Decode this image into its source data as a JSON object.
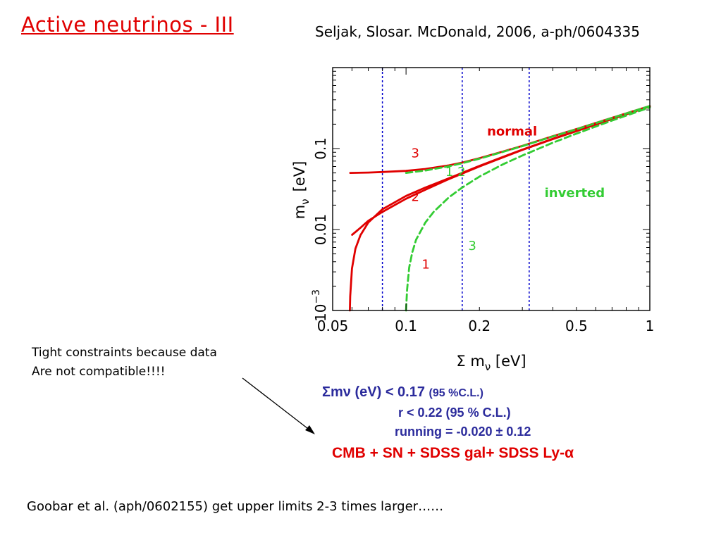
{
  "slide": {
    "title": "Active neutrinos -  III",
    "citation": "Seljak, Slosar. McDonald, 2006, a-ph/0604335",
    "note_lines": [
      "Tight constraints because data",
      "Are not compatible!!!!"
    ],
    "results": {
      "line1_sym": "Σmν",
      "line1_main": " (eV) < 0.17 ",
      "line1_small": "(95 %C.L.)",
      "line2": "r < 0.22 (95 % C.L.)",
      "line3": "running = -0.020 ± 0.12",
      "line4": "CMB + SN + SDSS gal+ SDSS Ly-α"
    },
    "footer": "Goobar et al. (aph/0602155) get upper  limits 2-3 times larger……"
  },
  "colors": {
    "title": "#e00000",
    "normal": "#e00000",
    "inverted": "#33cc33",
    "bounds": "#0000cc",
    "results": "#2b2b9c"
  },
  "chart_data": {
    "type": "line",
    "xscale": "log",
    "yscale": "log",
    "xlabel": "Σ m",
    "xlabel_sub": "ν",
    "xlabel_unit": " [eV]",
    "ylabel": "m",
    "ylabel_sub": "ν",
    "ylabel_unit": "[eV]",
    "xlim": [
      0.05,
      1
    ],
    "ylim": [
      0.001,
      1
    ],
    "x_ticks": [
      {
        "v": 0.05,
        "label": "0.05"
      },
      {
        "v": 0.1,
        "label": "0.1"
      },
      {
        "v": 0.2,
        "label": "0.2"
      },
      {
        "v": 0.5,
        "label": "0.5"
      },
      {
        "v": 1,
        "label": "1"
      }
    ],
    "y_ticks": [
      {
        "v": 0.001,
        "label": "10",
        "sup": "−3"
      },
      {
        "v": 0.01,
        "label": "0.01"
      },
      {
        "v": 0.1,
        "label": "0.1"
      }
    ],
    "vertical_lines": [
      0.08,
      0.17,
      0.32
    ],
    "grid": false,
    "series": [
      {
        "name": "normal",
        "group": "normal",
        "mass": "3",
        "style": "solid",
        "x": [
          0.059,
          0.07,
          0.08,
          0.1,
          0.12,
          0.15,
          0.17,
          0.2,
          0.25,
          0.3,
          0.4,
          0.5,
          0.7,
          1.0
        ],
        "y": [
          0.05,
          0.0505,
          0.0513,
          0.053,
          0.056,
          0.062,
          0.067,
          0.076,
          0.092,
          0.108,
          0.142,
          0.174,
          0.24,
          0.335
        ]
      },
      {
        "group": "normal",
        "mass": "2",
        "style": "solid",
        "x": [
          0.0601,
          0.065,
          0.07,
          0.08,
          0.1,
          0.12,
          0.15,
          0.17,
          0.2,
          0.25,
          0.3,
          0.4,
          0.5,
          0.7,
          1.0
        ],
        "y": [
          0.0086,
          0.0105,
          0.0128,
          0.0165,
          0.024,
          0.031,
          0.042,
          0.049,
          0.06,
          0.078,
          0.096,
          0.131,
          0.164,
          0.232,
          0.331
        ]
      },
      {
        "group": "normal",
        "mass": "1",
        "style": "solid",
        "x": [
          0.0588,
          0.059,
          0.06,
          0.062,
          0.065,
          0.07,
          0.08,
          0.1,
          0.12,
          0.15,
          0.17,
          0.2,
          0.25,
          0.3,
          0.4,
          0.5,
          0.7,
          1.0
        ],
        "y": [
          0.001,
          0.0015,
          0.0033,
          0.0058,
          0.0085,
          0.0122,
          0.0178,
          0.026,
          0.033,
          0.043,
          0.05,
          0.061,
          0.079,
          0.097,
          0.132,
          0.165,
          0.232,
          0.331
        ]
      },
      {
        "name": "inverted",
        "group": "inverted",
        "mass": "1 2",
        "style": "dashed",
        "x": [
          0.1,
          0.12,
          0.15,
          0.17,
          0.2,
          0.25,
          0.3,
          0.4,
          0.5,
          0.7,
          1.0
        ],
        "y": [
          0.05,
          0.0535,
          0.0605,
          0.066,
          0.075,
          0.091,
          0.107,
          0.141,
          0.173,
          0.239,
          0.335
        ]
      },
      {
        "group": "inverted",
        "mass": "3",
        "style": "dashed",
        "x": [
          0.1,
          0.101,
          0.103,
          0.106,
          0.11,
          0.12,
          0.13,
          0.15,
          0.17,
          0.2,
          0.25,
          0.3,
          0.4,
          0.5,
          0.7,
          1.0
        ],
        "y": [
          0.001,
          0.0018,
          0.0034,
          0.0052,
          0.0075,
          0.0122,
          0.0166,
          0.025,
          0.033,
          0.045,
          0.064,
          0.082,
          0.118,
          0.153,
          0.222,
          0.322
        ]
      }
    ],
    "annotations": [
      {
        "text": "normal",
        "x": 0.215,
        "y": 0.145,
        "color": "#e00000"
      },
      {
        "text": "3",
        "x": 0.105,
        "y": 0.078,
        "color": "#e00000"
      },
      {
        "text": "1 2",
        "x": 0.145,
        "y": 0.046,
        "color": "#33cc33"
      },
      {
        "text": "2",
        "x": 0.105,
        "y": 0.0225,
        "color": "#e00000"
      },
      {
        "text": "inverted",
        "x": 0.37,
        "y": 0.025,
        "color": "#33cc33"
      },
      {
        "text": "3",
        "x": 0.18,
        "y": 0.0056,
        "color": "#33cc33"
      },
      {
        "text": "1",
        "x": 0.116,
        "y": 0.0033,
        "color": "#e00000"
      }
    ]
  }
}
